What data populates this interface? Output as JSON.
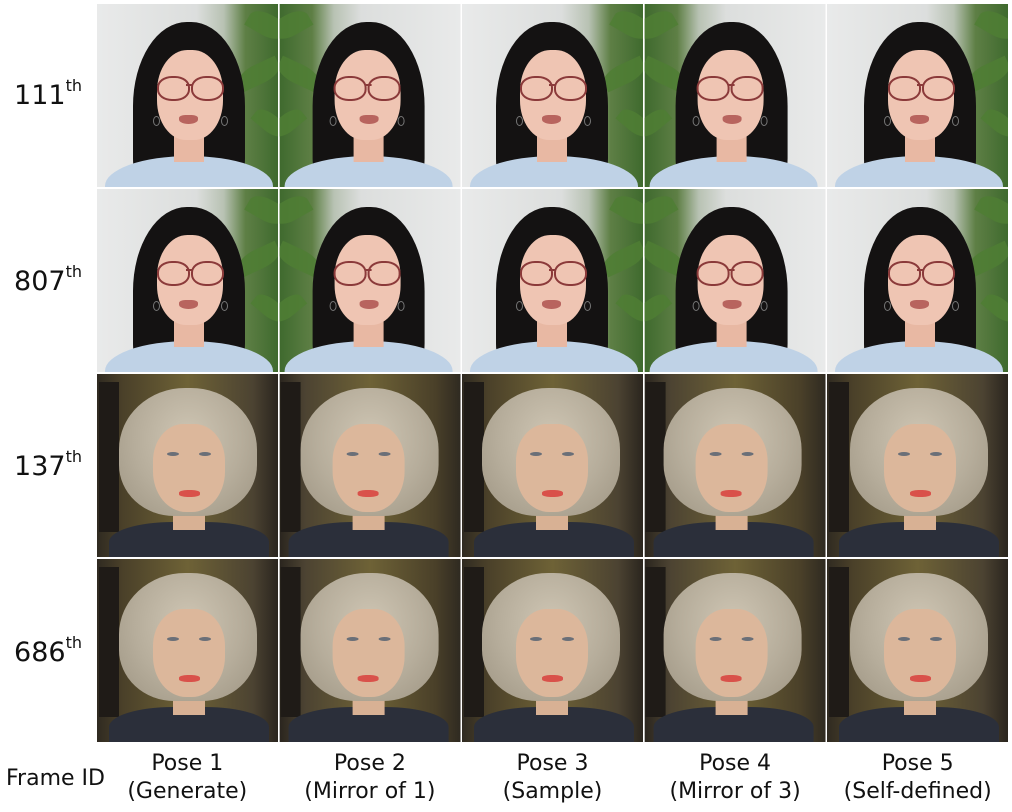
{
  "row_labels": [
    {
      "num": "111",
      "sup": "th"
    },
    {
      "num": "807",
      "sup": "th"
    },
    {
      "num": "137",
      "sup": "th"
    },
    {
      "num": "686",
      "sup": "th"
    }
  ],
  "column_captions": [
    {
      "line1": "Pose 1",
      "line2": "(Generate)"
    },
    {
      "line1": "Pose 2",
      "line2": "(Mirror of 1)"
    },
    {
      "line1": "Pose 3",
      "line2": "(Sample)"
    },
    {
      "line1": "Pose 4",
      "line2": "(Mirror of 3)"
    },
    {
      "line1": "Pose 5",
      "line2": "(Self-defined)"
    }
  ],
  "axis_label": "Frame ID"
}
